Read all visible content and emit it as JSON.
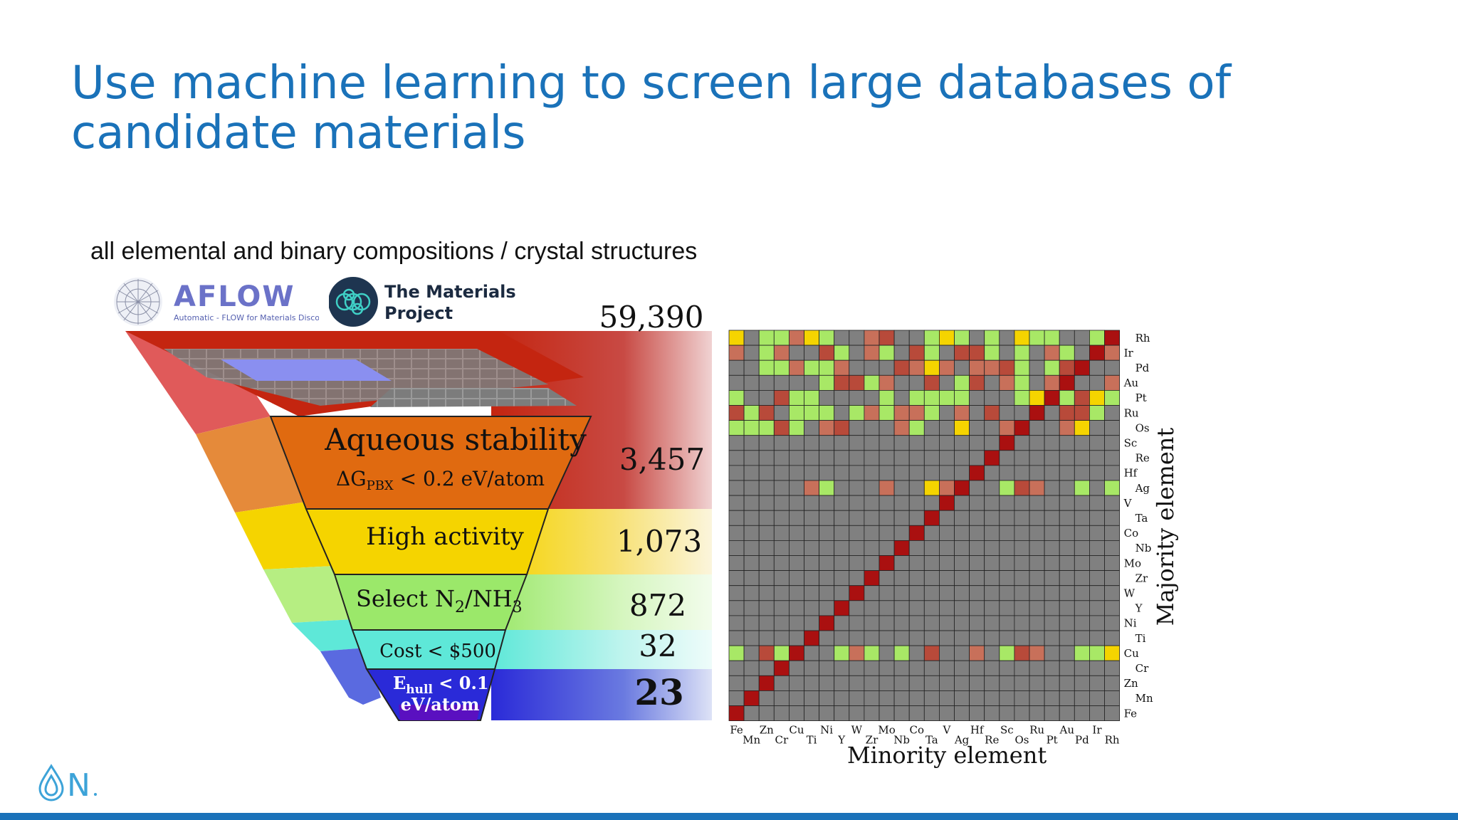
{
  "title": "Use machine learning to screen large databases of candidate materials",
  "subtitle": "all elemental and binary compositions / crystal structures",
  "logos": {
    "aflow": {
      "name": "AFLOW",
      "tagline": "Automatic - FLOW for Materials Discovery"
    },
    "materials_project": {
      "line1": "The Materials",
      "line2": "Project"
    }
  },
  "funnel": {
    "top_count": "59,390",
    "stages": [
      {
        "label_main": "Aqueous stability",
        "label_sub": "ΔG",
        "label_sub_sub": "PBX",
        "label_sub_rest": " < 0.2 eV/atom",
        "count": "3,457",
        "color": "#e06a10"
      },
      {
        "label_main": "High activity",
        "count": "1,073",
        "color": "#f5d400"
      },
      {
        "label_main": "Select N",
        "label_sub_2": "2",
        "label_mid": "/NH",
        "label_sub_3": "3",
        "count": "872",
        "color": "#9be86a"
      },
      {
        "label_main": "Cost < $500",
        "count": "32",
        "color": "#5ee8d8"
      },
      {
        "label_main": "E",
        "label_sub": "hull",
        "label_rest": " < 0.1",
        "label_line2": "eV/atom",
        "count": "23",
        "color": "#2a2ad8"
      }
    ]
  },
  "heatmap": {
    "xlabel": "Minority element",
    "ylabel": "Majority element",
    "x_ticks": [
      "Fe",
      "Mn",
      "Zn",
      "Cr",
      "Cu",
      "Ti",
      "Ni",
      "Y",
      "W",
      "Zr",
      "Mo",
      "Nb",
      "Co",
      "Ta",
      "V",
      "Ag",
      "Hf",
      "Re",
      "Sc",
      "Os",
      "Ru",
      "Pt",
      "Au",
      "Pd",
      "Ir",
      "Rh"
    ],
    "y_ticks": [
      "Rh",
      "Ir",
      "Pd",
      "Au",
      "Pt",
      "Ru",
      "Os",
      "Sc",
      "Re",
      "Hf",
      "Ag",
      "V",
      "Ta",
      "Co",
      "Nb",
      "Mo",
      "Zr",
      "W",
      "Y",
      "Ni",
      "Ti",
      "Cu",
      "Cr",
      "Zn",
      "Mn",
      "Fe"
    ]
  },
  "footer": {
    "logo_letter": "N"
  },
  "colors": {
    "accent": "#1a72b9"
  }
}
